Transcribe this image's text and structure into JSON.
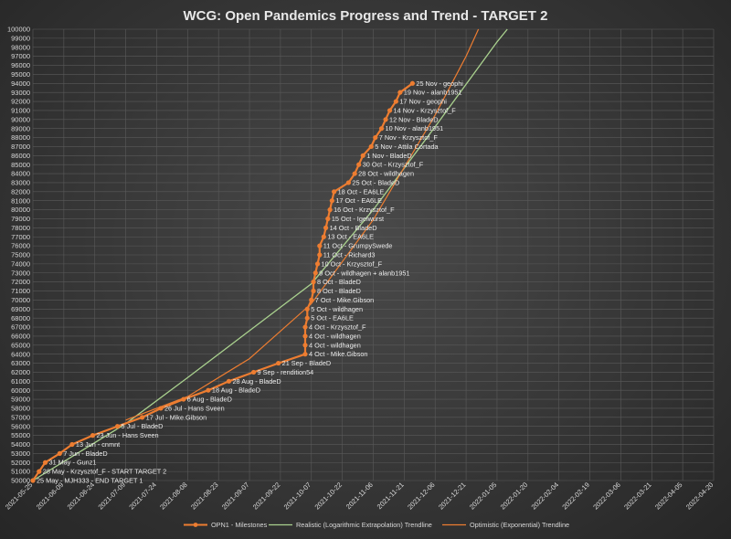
{
  "chart_data": {
    "type": "line",
    "title": "WCG: Open Pandemics Progress and Trend - TARGET 2",
    "ylim": [
      50000,
      100000
    ],
    "y_ticks": [
      "50000",
      "51000",
      "52000",
      "53000",
      "54000",
      "55000",
      "56000",
      "57000",
      "58000",
      "59000",
      "60000",
      "61000",
      "62000",
      "63000",
      "64000",
      "65000",
      "66000",
      "67000",
      "68000",
      "69000",
      "70000",
      "71000",
      "72000",
      "73000",
      "74000",
      "75000",
      "76000",
      "77000",
      "78000",
      "79000",
      "80000",
      "81000",
      "82000",
      "83000",
      "84000",
      "85000",
      "86000",
      "87000",
      "88000",
      "89000",
      "90000",
      "91000",
      "92000",
      "93000",
      "94000",
      "95000",
      "96000",
      "97000",
      "98000",
      "99000",
      "100000"
    ],
    "xlim": [
      "2021-05-25",
      "2022-04-20"
    ],
    "x_ticks": [
      "2021-05-25",
      "2021-06-09",
      "2021-06-24",
      "2021-07-09",
      "2021-07-24",
      "2021-08-08",
      "2021-08-23",
      "2021-09-07",
      "2021-09-22",
      "2021-10-07",
      "2021-10-22",
      "2021-11-06",
      "2021-11-21",
      "2021-12-06",
      "2021-12-21",
      "2022-01-05",
      "2022-01-20",
      "2022-02-04",
      "2022-02-19",
      "2022-03-06",
      "2022-03-21",
      "2022-04-05",
      "2022-04-20"
    ],
    "grid": true,
    "legend": "bottom",
    "series": [
      {
        "name": "OPN1 - Milestones",
        "color": "#ed7d31",
        "points": [
          {
            "x": "2021-05-25",
            "y": 50000,
            "label": "25 May - MJH333 - END TARGET 1"
          },
          {
            "x": "2021-05-28",
            "y": 51000,
            "label": "28 May - Krzysztof_F - START TARGET 2"
          },
          {
            "x": "2021-05-31",
            "y": 52000,
            "label": "31 May - Gunz1"
          },
          {
            "x": "2021-06-07",
            "y": 53000,
            "label": "7 Jun - BladeD"
          },
          {
            "x": "2021-06-13",
            "y": 54000,
            "label": "13 Jun - cnmnt"
          },
          {
            "x": "2021-06-23",
            "y": 55000,
            "label": "23 Jun - Hans Sveen"
          },
          {
            "x": "2021-07-05",
            "y": 56000,
            "label": "5 Jul - BladeD"
          },
          {
            "x": "2021-07-17",
            "y": 57000,
            "label": "17 Jul - Mike.Gibson"
          },
          {
            "x": "2021-07-26",
            "y": 58000,
            "label": "26 Jul - Hans Sveen"
          },
          {
            "x": "2021-08-06",
            "y": 59000,
            "label": "6 Aug - BladeD"
          },
          {
            "x": "2021-08-18",
            "y": 60000,
            "label": "18 Aug - BladeD"
          },
          {
            "x": "2021-08-28",
            "y": 61000,
            "label": "28 Aug - BladeD"
          },
          {
            "x": "2021-09-09",
            "y": 62000,
            "label": "9 Sep - rendition54"
          },
          {
            "x": "2021-09-21",
            "y": 63000,
            "label": "21 Sep - BladeD"
          },
          {
            "x": "2021-10-04",
            "y": 64000,
            "label": "4 Oct - Mike.Gibson"
          },
          {
            "x": "2021-10-04",
            "y": 65000,
            "label": "4 Oct - wildhagen"
          },
          {
            "x": "2021-10-04",
            "y": 66000,
            "label": "4 Oct - wildhagen"
          },
          {
            "x": "2021-10-04",
            "y": 67000,
            "label": "4 Oct - Krzysztof_F"
          },
          {
            "x": "2021-10-05",
            "y": 68000,
            "label": "5 Oct - EA6LE"
          },
          {
            "x": "2021-10-05",
            "y": 69000,
            "label": "5 Oct - wildhagen"
          },
          {
            "x": "2021-10-07",
            "y": 70000,
            "label": "7 Oct - Mike.Gibson"
          },
          {
            "x": "2021-10-08",
            "y": 71000,
            "label": "8 Oct - BladeD"
          },
          {
            "x": "2021-10-08",
            "y": 72000,
            "label": "8 Oct - BladeD"
          },
          {
            "x": "2021-10-09",
            "y": 73000,
            "label": "9 Oct - wildhagen + alanb1951"
          },
          {
            "x": "2021-10-10",
            "y": 74000,
            "label": "10 Oct - Krzysztof_F"
          },
          {
            "x": "2021-10-11",
            "y": 75000,
            "label": "11 Oct - Richard3"
          },
          {
            "x": "2021-10-11",
            "y": 76000,
            "label": "11 Oct - GrumpySwede"
          },
          {
            "x": "2021-10-13",
            "y": 77000,
            "label": "13 Oct - EA6LE"
          },
          {
            "x": "2021-10-14",
            "y": 78000,
            "label": "14 Oct - BladeD"
          },
          {
            "x": "2021-10-15",
            "y": 79000,
            "label": "15 Oct - Igelwurst"
          },
          {
            "x": "2021-10-16",
            "y": 80000,
            "label": "16 Oct - Krzysztof_F"
          },
          {
            "x": "2021-10-17",
            "y": 81000,
            "label": "17 Oct - EA6LE"
          },
          {
            "x": "2021-10-18",
            "y": 82000,
            "label": "18 Oct - EA6LE"
          },
          {
            "x": "2021-10-25",
            "y": 83000,
            "label": "25 Oct - BladeD"
          },
          {
            "x": "2021-10-28",
            "y": 84000,
            "label": "28 Oct - wildhagen"
          },
          {
            "x": "2021-10-30",
            "y": 85000,
            "label": "30 Oct - Krzysztof_F"
          },
          {
            "x": "2021-11-01",
            "y": 86000,
            "label": "1 Nov - BladeD"
          },
          {
            "x": "2021-11-05",
            "y": 87000,
            "label": "5 Nov - Attila Cortada"
          },
          {
            "x": "2021-11-07",
            "y": 88000,
            "label": "7 Nov - Krzysztof_F"
          },
          {
            "x": "2021-11-10",
            "y": 89000,
            "label": "10 Nov - alanb1951"
          },
          {
            "x": "2021-11-12",
            "y": 90000,
            "label": "12 Nov - BladeD"
          },
          {
            "x": "2021-11-14",
            "y": 91000,
            "label": "14 Nov - Krzysztof_F"
          },
          {
            "x": "2021-11-17",
            "y": 92000,
            "label": "17 Nov - geophi"
          },
          {
            "x": "2021-11-19",
            "y": 93000,
            "label": "19 Nov - alanb1951"
          },
          {
            "x": "2021-11-25",
            "y": 94000,
            "label": "25 Nov - geophi"
          }
        ]
      },
      {
        "name": "Realistic (Logarithmic Extrapolation) Trendline",
        "color": "#a9d18e",
        "points": [
          {
            "x": "2021-05-25",
            "y": 50000
          },
          {
            "x": "2021-07-09",
            "y": 56300
          },
          {
            "x": "2021-08-08",
            "y": 61400
          },
          {
            "x": "2021-09-07",
            "y": 66600
          },
          {
            "x": "2021-10-07",
            "y": 71800
          },
          {
            "x": "2021-11-06",
            "y": 80000
          },
          {
            "x": "2021-12-06",
            "y": 89200
          },
          {
            "x": "2022-01-05",
            "y": 98600
          },
          {
            "x": "2022-01-10",
            "y": 100000
          }
        ]
      },
      {
        "name": "Optimistic (Exponential) Trendline",
        "color": "#ed7d31",
        "points": [
          {
            "x": "2021-07-09",
            "y": 56700
          },
          {
            "x": "2021-08-08",
            "y": 59300
          },
          {
            "x": "2021-09-07",
            "y": 63500
          },
          {
            "x": "2021-10-07",
            "y": 69600
          },
          {
            "x": "2021-11-06",
            "y": 78900
          },
          {
            "x": "2021-12-06",
            "y": 90500
          },
          {
            "x": "2021-12-21",
            "y": 97000
          },
          {
            "x": "2021-12-27",
            "y": 100000
          }
        ]
      }
    ]
  }
}
